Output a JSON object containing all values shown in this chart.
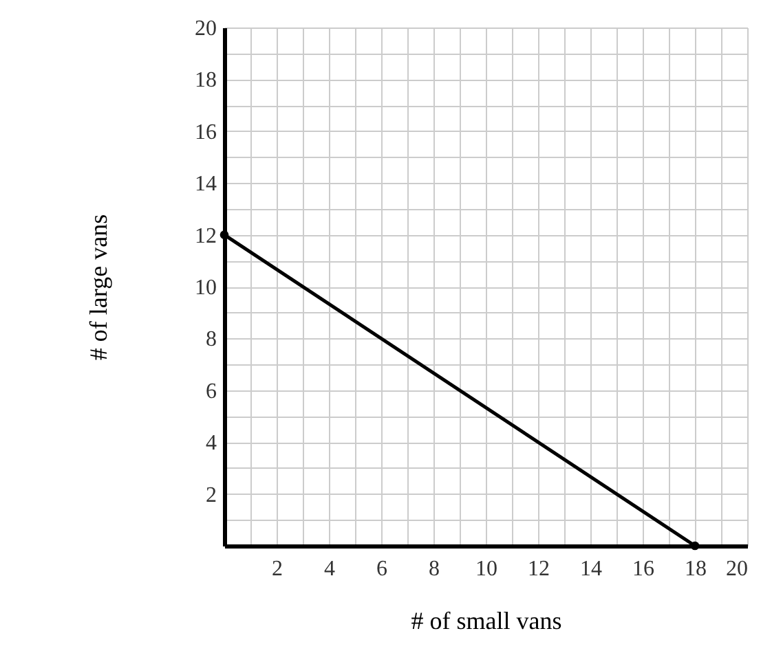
{
  "chart_data": {
    "type": "line",
    "xlabel": "# of small vans",
    "ylabel": "# of large vans",
    "x": [
      0,
      18
    ],
    "values": [
      12,
      0
    ],
    "color": "#000000",
    "marker": "circle",
    "line_style": "solid",
    "xlim": [
      0,
      20
    ],
    "ylim": [
      0,
      20
    ],
    "xticks": [
      {
        "value": 1,
        "label": null
      },
      2,
      {
        "value": 3,
        "label": null
      },
      4,
      {
        "value": 5,
        "label": null
      },
      6,
      {
        "value": 7,
        "label": null
      },
      8,
      {
        "value": 9,
        "label": null
      },
      10,
      {
        "value": 11,
        "label": null
      },
      12,
      {
        "value": 13,
        "label": null
      },
      14,
      {
        "value": 15,
        "label": null
      },
      16,
      {
        "value": 17,
        "label": null
      },
      18,
      {
        "value": 19,
        "label": null
      },
      20
    ],
    "yticks": [
      {
        "value": 1,
        "label": null
      },
      2,
      {
        "value": 3,
        "label": null
      },
      4,
      {
        "value": 5,
        "label": null
      },
      6,
      {
        "value": 7,
        "label": null
      },
      8,
      {
        "value": 9,
        "label": null
      },
      10,
      {
        "value": 11,
        "label": null
      },
      12,
      {
        "value": 13,
        "label": null
      },
      14,
      {
        "value": 15,
        "label": null
      },
      16,
      {
        "value": 17,
        "label": null
      },
      18,
      {
        "value": 19,
        "label": null
      },
      20
    ],
    "grid": true
  }
}
